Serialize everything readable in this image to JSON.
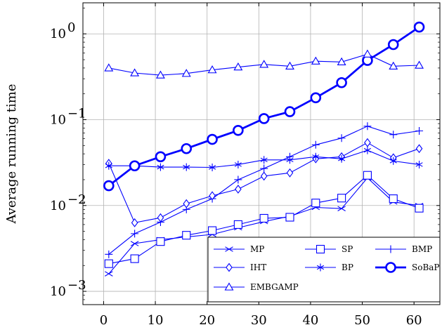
{
  "chart_data": {
    "type": "line",
    "title": "",
    "xlabel": "",
    "ylabel": "Average running time",
    "xlim": [
      -4,
      65
    ],
    "ylim": [
      0.0007,
      2.3
    ],
    "yscale": "log",
    "grid": true,
    "legend_position": "bottom-right",
    "x_ticks": [
      0,
      10,
      20,
      30,
      40,
      50,
      60
    ],
    "x_tick_labels": [
      "0",
      "10",
      "20",
      "30",
      "40",
      "50",
      "60"
    ],
    "y_ticks": [
      0.001,
      0.01,
      0.1,
      1
    ],
    "y_tick_labels": [
      {
        "base": "10",
        "exp": "−3"
      },
      {
        "base": "10",
        "exp": "−2"
      },
      {
        "base": "10",
        "exp": "−1"
      },
      {
        "base": "10",
        "exp": "0"
      }
    ],
    "x": [
      1,
      6,
      11,
      16,
      21,
      26,
      31,
      36,
      41,
      46,
      51,
      56,
      61
    ],
    "series": [
      {
        "name": "MP",
        "marker": "x",
        "values": [
          0.0016,
          0.0036,
          0.004,
          0.0043,
          0.0046,
          0.0055,
          0.0065,
          0.0075,
          0.0095,
          0.0092,
          0.021,
          0.011,
          0.01
        ]
      },
      {
        "name": "SP",
        "marker": "square",
        "values": [
          0.0021,
          0.0024,
          0.0038,
          0.0045,
          0.0051,
          0.006,
          0.0071,
          0.0073,
          0.0107,
          0.0122,
          0.0225,
          0.012,
          0.0093
        ]
      },
      {
        "name": "BMP",
        "marker": "plus",
        "values": [
          0.0027,
          0.0047,
          0.0064,
          0.009,
          0.012,
          0.02,
          0.027,
          0.037,
          0.051,
          0.061,
          0.084,
          0.067,
          0.074
        ]
      },
      {
        "name": "IHT",
        "marker": "diamond",
        "values": [
          0.031,
          0.0063,
          0.0072,
          0.0105,
          0.013,
          0.0155,
          0.022,
          0.024,
          0.035,
          0.037,
          0.054,
          0.036,
          0.046
        ]
      },
      {
        "name": "BP",
        "marker": "asterisk",
        "values": [
          0.029,
          0.029,
          0.028,
          0.028,
          0.0278,
          0.03,
          0.034,
          0.034,
          0.037,
          0.035,
          0.044,
          0.033,
          0.03
        ]
      },
      {
        "name": "SoBaP",
        "marker": "circle",
        "bold": true,
        "values": [
          0.017,
          0.029,
          0.037,
          0.046,
          0.059,
          0.075,
          0.103,
          0.124,
          0.18,
          0.27,
          0.49,
          0.75,
          1.2
        ]
      },
      {
        "name": "EMBGAMP",
        "marker": "triangle",
        "values": [
          0.4,
          0.35,
          0.33,
          0.345,
          0.38,
          0.41,
          0.44,
          0.42,
          0.48,
          0.47,
          0.58,
          0.42,
          0.43
        ]
      }
    ],
    "legend_order": [
      "MP",
      "SP",
      "BMP",
      "IHT",
      "BP",
      "SoBaP",
      "EMBGAMP"
    ]
  },
  "colors": {
    "series": "#0000ff",
    "grid": "#b3b3b3",
    "axis": "#000000"
  }
}
